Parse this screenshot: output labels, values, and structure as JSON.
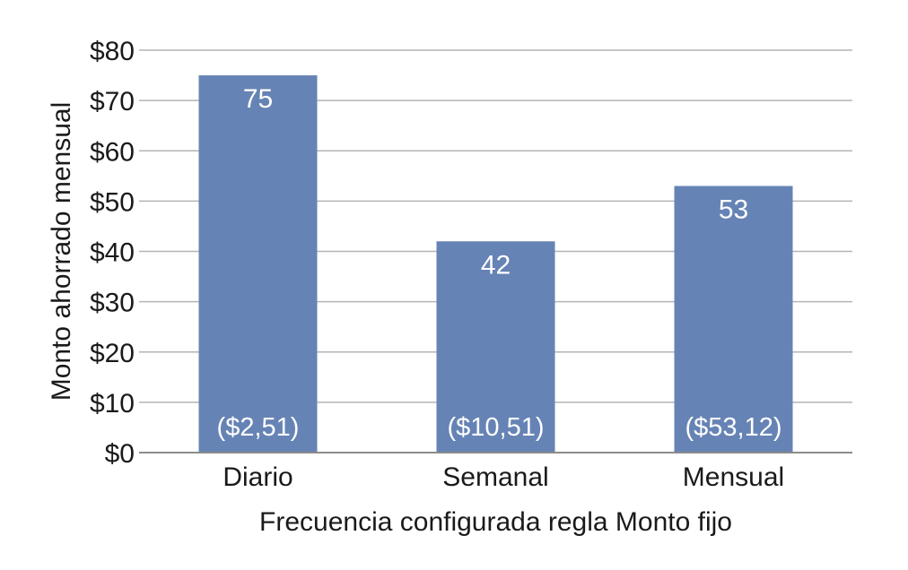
{
  "chart_data": {
    "type": "bar",
    "title": "",
    "xlabel": "Frecuencia configurada regla Monto fijo",
    "ylabel": "Monto ahorrado mensual",
    "categories": [
      "Diario",
      "Semanal",
      "Mensual"
    ],
    "values": [
      75,
      42,
      53
    ],
    "value_labels": [
      "75",
      "42",
      "53"
    ],
    "inner_labels": [
      "($2,51)",
      "($10,51)",
      "($53,12)"
    ],
    "ylim": [
      0,
      80
    ],
    "yticks": [
      0,
      10,
      20,
      30,
      40,
      50,
      60,
      70,
      80
    ],
    "ytick_labels": [
      "$0",
      "$10",
      "$20",
      "$30",
      "$40",
      "$50",
      "$60",
      "$70",
      "$80"
    ],
    "grid": true,
    "legend": "none",
    "colors": {
      "bar": "#6683b5"
    }
  }
}
